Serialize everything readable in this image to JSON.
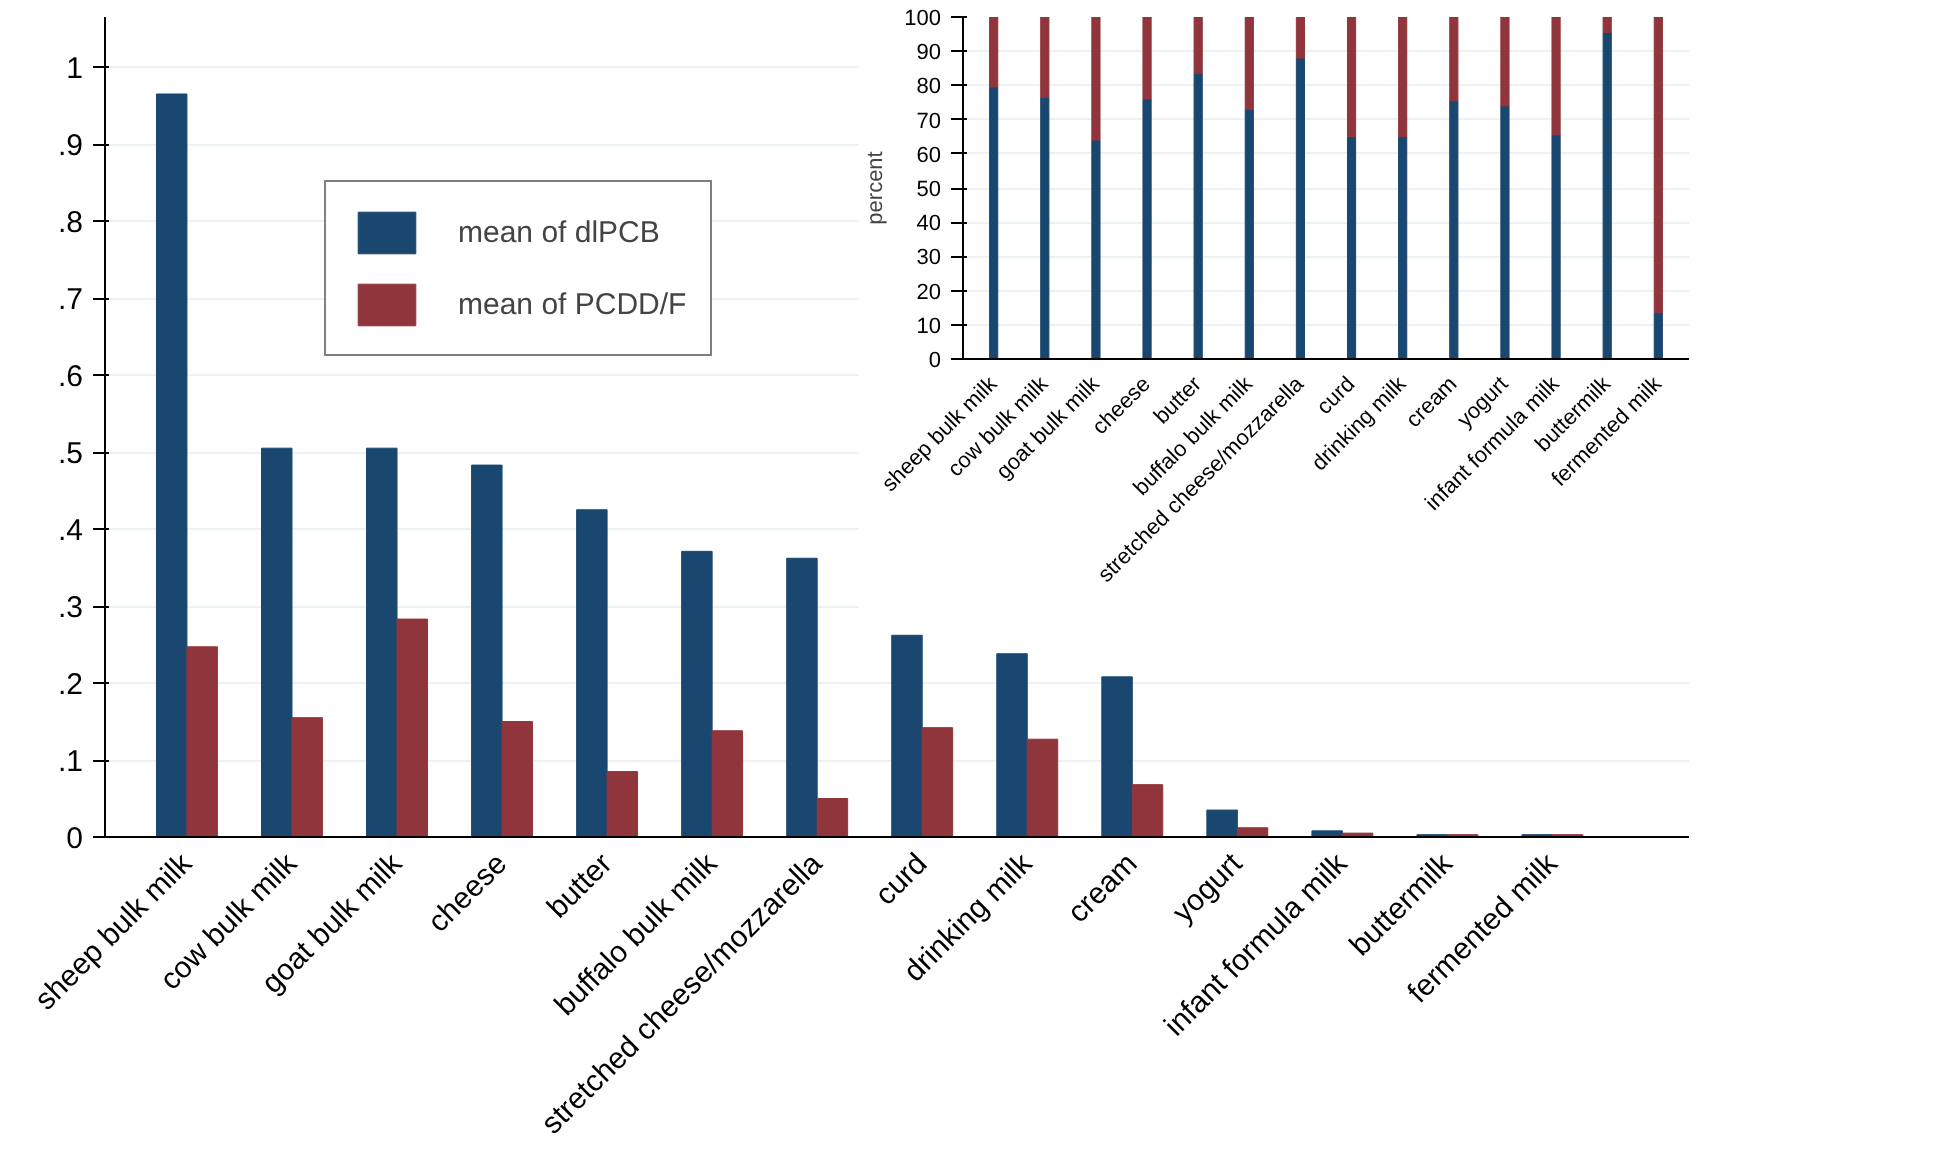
{
  "chart_data": [
    {
      "type": "bar",
      "categories": [
        "sheep bulk milk",
        "cow bulk milk",
        "goat bulk milk",
        "cheese",
        "butter",
        "buffalo bulk milk",
        "stretched cheese/mozzarella",
        "curd",
        "drinking milk",
        "cream",
        "yogurt",
        "infant formula milk",
        "buttermilk",
        "fermented milk"
      ],
      "series": [
        {
          "name": "mean of dlPCB",
          "color": "#1a476f",
          "values": [
            0.965,
            0.505,
            0.505,
            0.483,
            0.425,
            0.371,
            0.362,
            0.262,
            0.238,
            0.208,
            0.035,
            0.008,
            0.003,
            0.003
          ]
        },
        {
          "name": "mean of PCDD/F",
          "color": "#90353b",
          "values": [
            0.247,
            0.155,
            0.283,
            0.15,
            0.085,
            0.138,
            0.05,
            0.142,
            0.127,
            0.068,
            0.012,
            0.005,
            0.003,
            0.003
          ]
        }
      ],
      "ylim": [
        0,
        1.065
      ],
      "yticks": [
        0,
        {
          "value": 0.1,
          "label": ".1"
        },
        {
          "value": 0.2,
          "label": ".2"
        },
        {
          "value": 0.3,
          "label": ".3"
        },
        {
          "value": 0.4,
          "label": ".4"
        },
        {
          "value": 0.5,
          "label": ".5"
        },
        {
          "value": 0.6,
          "label": ".6"
        },
        {
          "value": 0.7,
          "label": ".7"
        },
        {
          "value": 0.8,
          "label": ".8"
        },
        {
          "value": 0.9,
          "label": ".9"
        },
        1
      ],
      "grid": "y",
      "legend": "top left"
    },
    {
      "type": "bar",
      "stacked": true,
      "ylabel": "percent",
      "categories": [
        "sheep bulk milk",
        "cow bulk milk",
        "goat bulk milk",
        "cheese",
        "butter",
        "buffalo bulk milk",
        "stretched cheese/mozzarella",
        "curd",
        "drinking milk",
        "cream",
        "yogurt",
        "infant formula milk",
        "buttermilk",
        "fermented milk"
      ],
      "series": [
        {
          "color": "#1a476f",
          "values": [
            79.5,
            76.5,
            64,
            76,
            83.5,
            73,
            88,
            65,
            65,
            75.5,
            74,
            65.5,
            95.5,
            13.5
          ]
        },
        {
          "color": "#90353b",
          "values": [
            20.5,
            23.5,
            36,
            24,
            16.5,
            27,
            12,
            35,
            35,
            24.5,
            26,
            34.5,
            4.5,
            86.5
          ]
        }
      ],
      "ylim": [
        0,
        100
      ],
      "yticks": [
        0,
        10,
        20,
        30,
        40,
        50,
        60,
        70,
        80,
        90,
        100
      ],
      "grid": "y"
    }
  ]
}
